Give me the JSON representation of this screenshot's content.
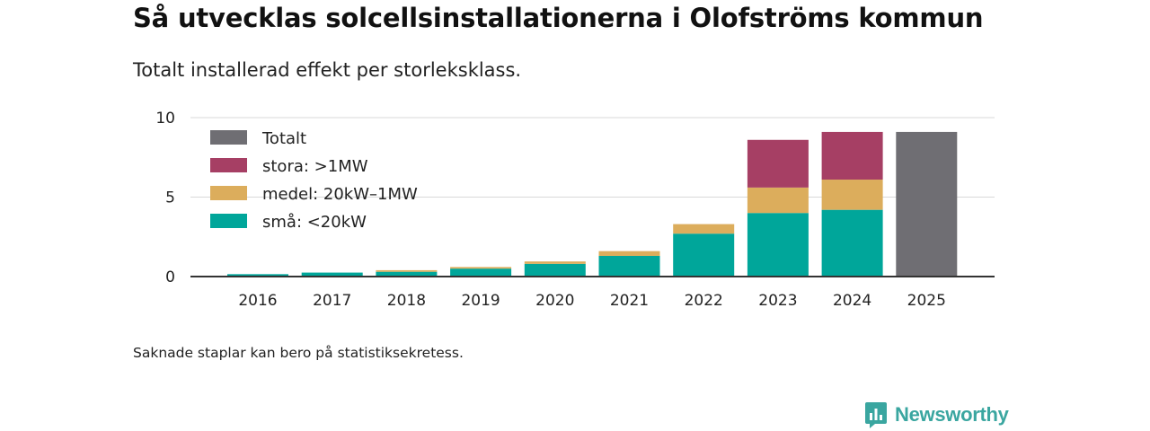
{
  "title": "Så utvecklas solcellsinstallationerna i Olofströms kommun",
  "subtitle": "Totalt installerad effekt per storleksklass.",
  "footnote": "Saknade staplar kan bero på statistiksekretess.",
  "brand": {
    "name": "Newsworthy",
    "icon": "newsworthy-logo-icon",
    "color": "#3aa6a0"
  },
  "chart_data": {
    "type": "bar",
    "stacked": true,
    "categories": [
      "2016",
      "2017",
      "2018",
      "2019",
      "2020",
      "2021",
      "2022",
      "2023",
      "2024",
      "2025"
    ],
    "series": [
      {
        "key": "sma",
        "name": "små: <20kW",
        "color": "#00a69a",
        "values": [
          0.15,
          0.25,
          0.3,
          0.5,
          0.8,
          1.3,
          2.7,
          4.0,
          4.2,
          null
        ]
      },
      {
        "key": "medel",
        "name": "medel: 20kW–1MW",
        "color": "#dcad5c",
        "values": [
          0.0,
          0.0,
          0.1,
          0.1,
          0.15,
          0.3,
          0.6,
          1.6,
          1.9,
          null
        ]
      },
      {
        "key": "stora",
        "name": "stora: >1MW",
        "color": "#a63f64",
        "values": [
          0,
          0,
          0,
          0,
          0,
          0,
          0,
          3.0,
          3.0,
          null
        ]
      },
      {
        "key": "totalt",
        "name": "Totalt",
        "color": "#6f6e73",
        "values": [
          null,
          null,
          null,
          null,
          null,
          null,
          null,
          null,
          null,
          9.1
        ]
      }
    ],
    "legend_order": [
      "totalt",
      "stora",
      "medel",
      "sma"
    ],
    "legend_position": "top-left",
    "ylim": [
      0,
      10
    ],
    "yticks": [
      0,
      5,
      10
    ],
    "xlabel": "",
    "ylabel": "",
    "grid": true
  }
}
